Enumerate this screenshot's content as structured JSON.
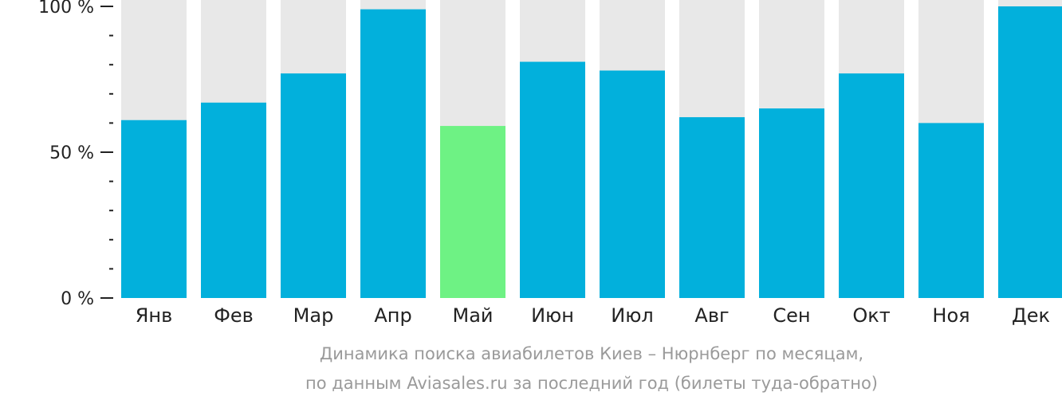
{
  "chart_data": {
    "type": "bar",
    "categories": [
      "Янв",
      "Фев",
      "Мар",
      "Апр",
      "Май",
      "Июн",
      "Июл",
      "Авг",
      "Сен",
      "Окт",
      "Ноя",
      "Дек"
    ],
    "values": [
      61,
      67,
      77,
      99,
      59,
      81,
      78,
      62,
      65,
      77,
      60,
      100
    ],
    "highlight_index": 4,
    "ylim": [
      0,
      100
    ],
    "yticks": [
      {
        "value": 100,
        "label": "100 %"
      },
      {
        "value": 50,
        "label": "50 %"
      },
      {
        "value": 0,
        "label": "0 %"
      }
    ],
    "minor_tick_step": 10,
    "caption_lines": [
      "Динамика поиска авиабилетов Киев – Нюрнберг по месяцам,",
      "по данным Aviasales.ru за последний год (билеты туда-обратно)"
    ],
    "grid": false,
    "legend": "none",
    "colors": {
      "bar": "#02b0dc",
      "highlight": "#6ef284",
      "background_bar": "#e8e8e8",
      "axis": "#222222",
      "caption": "#9a9a9a"
    }
  }
}
